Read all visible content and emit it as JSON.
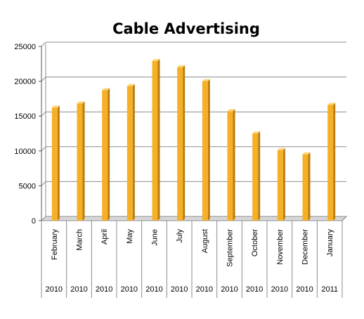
{
  "chart_data": {
    "type": "bar",
    "title": "Cable Advertising",
    "categories": [
      "February",
      "March",
      "April",
      "May",
      "June",
      "July",
      "August",
      "September",
      "October",
      "November",
      "December",
      "January"
    ],
    "years": [
      "2010",
      "2010",
      "2010",
      "2010",
      "2010",
      "2010",
      "2010",
      "2010",
      "2010",
      "2010",
      "2010",
      "2011"
    ],
    "values": [
      16200,
      16800,
      18700,
      19300,
      22900,
      22000,
      20000,
      15700,
      12500,
      10100,
      9500,
      16600
    ],
    "ylim": [
      0,
      25000
    ],
    "yticks": [
      0,
      5000,
      10000,
      15000,
      20000,
      25000
    ],
    "ytick_labels": [
      "0",
      "5000",
      "10000",
      "15000",
      "20000",
      "25000"
    ],
    "grid": true,
    "legend": "none",
    "colors": {
      "bar_front": "#f5b028",
      "bar_side": "#b97c0e",
      "bar_top": "#fbd577",
      "grid": "#8c8c8c",
      "floor": "#d9d9d9"
    }
  }
}
